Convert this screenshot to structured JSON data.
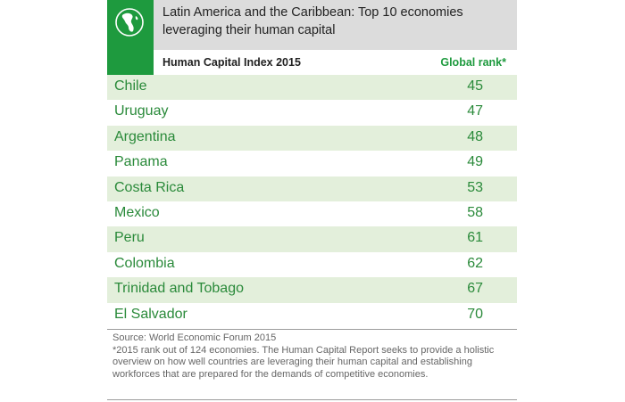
{
  "header": {
    "title": "Latin America and the Caribbean: Top 10 economies leveraging their human capital",
    "column_left": "Human Capital Index 2015",
    "column_right": "Global rank*",
    "icon": "globe-icon",
    "accent_color": "#1e9a3e"
  },
  "chart_data": {
    "type": "table",
    "title": "Latin America and the Caribbean: Top 10 economies leveraging their human capital",
    "columns": [
      "Human Capital Index 2015",
      "Global rank*"
    ],
    "rows": [
      {
        "country": "Chile",
        "rank": 45
      },
      {
        "country": "Uruguay",
        "rank": 47
      },
      {
        "country": "Argentina",
        "rank": 48
      },
      {
        "country": "Panama",
        "rank": 49
      },
      {
        "country": "Costa Rica",
        "rank": 53
      },
      {
        "country": "Mexico",
        "rank": 58
      },
      {
        "country": "Peru",
        "rank": 61
      },
      {
        "country": "Colombia",
        "rank": 62
      },
      {
        "country": "Trinidad and Tobago",
        "rank": 67
      },
      {
        "country": "El Salvador",
        "rank": 70
      }
    ],
    "row_color_alt": "#e3efdb",
    "text_color": "#2a8a3a"
  },
  "footer": {
    "source": "Source: World Economic Forum 2015",
    "note": "*2015 rank out of 124 economies. The Human Capital Report seeks to provide a holistic overview on how well countries are leveraging their human capital and establishing workforces that are prepared for the demands of competitive economies."
  }
}
